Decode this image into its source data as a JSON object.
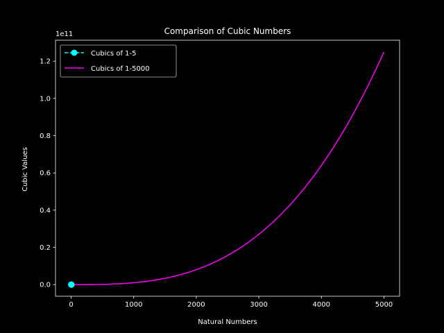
{
  "chart_data": {
    "type": "line",
    "title": "Comparison of Cubic Numbers",
    "xlabel": "Natural Numbers",
    "ylabel": "Cubic Values",
    "y_offset_text": "1e11",
    "xlim": [
      -250,
      5250
    ],
    "ylim": [
      -6250000000,
      131250000000
    ],
    "xticks": [
      0,
      1000,
      2000,
      3000,
      4000,
      5000
    ],
    "xtick_labels": [
      "0",
      "1000",
      "2000",
      "3000",
      "4000",
      "5000"
    ],
    "yticks": [
      0,
      20000000000,
      40000000000,
      60000000000,
      80000000000,
      100000000000,
      120000000000
    ],
    "ytick_labels": [
      "0.0",
      "0.2",
      "0.4",
      "0.6",
      "0.8",
      "1.0",
      "1.2"
    ],
    "grid": false,
    "legend_position": "upper-left",
    "series": [
      {
        "name": "Cubics of 1-5",
        "color": "#00ffff",
        "style": "dashed-with-circle-markers",
        "x": [
          1,
          2,
          3,
          4,
          5
        ],
        "y": [
          1,
          8,
          27,
          64,
          125
        ]
      },
      {
        "name": "Cubics of 1-5000",
        "color": "#ff00ff",
        "style": "solid",
        "formula": "y = x^3",
        "x_range": [
          1,
          5000
        ]
      }
    ]
  }
}
